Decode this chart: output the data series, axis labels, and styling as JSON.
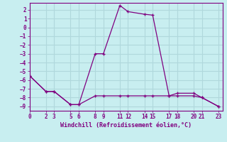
{
  "xlabel": "Windchill (Refroidissement éolien,°C)",
  "background_color": "#c8eef0",
  "grid_color": "#b0d8dc",
  "line_color": "#800080",
  "line1_x": [
    0,
    2,
    3,
    5,
    6,
    8,
    9,
    11,
    12,
    14,
    15,
    17,
    18,
    20,
    21,
    23
  ],
  "line1_y": [
    -5.5,
    -7.3,
    -7.3,
    -8.8,
    -8.8,
    -3.0,
    -3.0,
    2.5,
    1.8,
    1.5,
    1.4,
    -7.8,
    -7.5,
    -7.5,
    -8.0,
    -9.0
  ],
  "line2_x": [
    0,
    2,
    3,
    5,
    6,
    8,
    9,
    11,
    12,
    14,
    15,
    17,
    18,
    20,
    21,
    23
  ],
  "line2_y": [
    -5.5,
    -7.3,
    -7.3,
    -8.8,
    -8.8,
    -7.8,
    -7.8,
    -7.8,
    -7.8,
    -7.8,
    -7.8,
    -7.8,
    -7.8,
    -7.8,
    -8.0,
    -9.0
  ],
  "ylim": [
    -9.5,
    2.8
  ],
  "yticks": [
    2,
    1,
    0,
    -1,
    -2,
    -3,
    -4,
    -5,
    -6,
    -7,
    -8,
    -9
  ],
  "xticks": [
    0,
    2,
    3,
    5,
    6,
    8,
    9,
    11,
    12,
    14,
    15,
    17,
    18,
    20,
    21,
    23
  ],
  "xlim": [
    0,
    23.5
  ]
}
